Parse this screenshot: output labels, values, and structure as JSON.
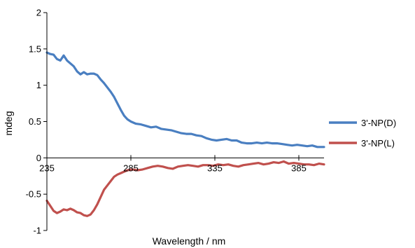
{
  "chart_data": {
    "type": "line",
    "title": "",
    "xlabel": "Wavelength / nm",
    "ylabel": "mdeg",
    "xlim": [
      235,
      400
    ],
    "ylim": [
      -1,
      2
    ],
    "x_ticks": [
      235,
      285,
      335,
      385
    ],
    "y_ticks": [
      2,
      1.5,
      1,
      0.5,
      0,
      -0.5,
      -1
    ],
    "x_tick_labels": [
      "235",
      "285",
      "335",
      "385"
    ],
    "y_tick_labels": [
      "2",
      "1.5",
      "1",
      "0.5",
      "0",
      "-0.5",
      "-1"
    ],
    "grid": false,
    "legend_position": "right",
    "series": [
      {
        "name": "3'-NP(D)",
        "color": "#4a7fc1",
        "points": [
          [
            235,
            1.45
          ],
          [
            237,
            1.43
          ],
          [
            239,
            1.42
          ],
          [
            241,
            1.36
          ],
          [
            243,
            1.34
          ],
          [
            245,
            1.41
          ],
          [
            247,
            1.34
          ],
          [
            249,
            1.3
          ],
          [
            251,
            1.26
          ],
          [
            253,
            1.19
          ],
          [
            255,
            1.15
          ],
          [
            257,
            1.18
          ],
          [
            259,
            1.15
          ],
          [
            261,
            1.16
          ],
          [
            263,
            1.16
          ],
          [
            265,
            1.14
          ],
          [
            267,
            1.08
          ],
          [
            269,
            1.03
          ],
          [
            271,
            0.97
          ],
          [
            273,
            0.91
          ],
          [
            275,
            0.84
          ],
          [
            277,
            0.75
          ],
          [
            279,
            0.66
          ],
          [
            281,
            0.58
          ],
          [
            283,
            0.53
          ],
          [
            285,
            0.5
          ],
          [
            288,
            0.47
          ],
          [
            291,
            0.46
          ],
          [
            294,
            0.44
          ],
          [
            297,
            0.42
          ],
          [
            300,
            0.43
          ],
          [
            303,
            0.4
          ],
          [
            306,
            0.39
          ],
          [
            309,
            0.38
          ],
          [
            312,
            0.36
          ],
          [
            315,
            0.34
          ],
          [
            318,
            0.33
          ],
          [
            321,
            0.33
          ],
          [
            324,
            0.31
          ],
          [
            327,
            0.3
          ],
          [
            330,
            0.27
          ],
          [
            333,
            0.25
          ],
          [
            336,
            0.24
          ],
          [
            339,
            0.25
          ],
          [
            342,
            0.26
          ],
          [
            345,
            0.24
          ],
          [
            348,
            0.24
          ],
          [
            351,
            0.21
          ],
          [
            354,
            0.2
          ],
          [
            357,
            0.2
          ],
          [
            360,
            0.21
          ],
          [
            363,
            0.2
          ],
          [
            366,
            0.21
          ],
          [
            369,
            0.2
          ],
          [
            372,
            0.2
          ],
          [
            375,
            0.19
          ],
          [
            378,
            0.18
          ],
          [
            381,
            0.17
          ],
          [
            384,
            0.18
          ],
          [
            387,
            0.17
          ],
          [
            390,
            0.16
          ],
          [
            393,
            0.17
          ],
          [
            396,
            0.15
          ],
          [
            400,
            0.15
          ]
        ]
      },
      {
        "name": "3'-NP(L)",
        "color": "#c0504d",
        "points": [
          [
            235,
            -0.59
          ],
          [
            237,
            -0.66
          ],
          [
            239,
            -0.73
          ],
          [
            241,
            -0.76
          ],
          [
            243,
            -0.74
          ],
          [
            245,
            -0.71
          ],
          [
            247,
            -0.72
          ],
          [
            249,
            -0.7
          ],
          [
            251,
            -0.72
          ],
          [
            253,
            -0.75
          ],
          [
            255,
            -0.76
          ],
          [
            257,
            -0.79
          ],
          [
            259,
            -0.8
          ],
          [
            261,
            -0.78
          ],
          [
            263,
            -0.72
          ],
          [
            265,
            -0.64
          ],
          [
            267,
            -0.54
          ],
          [
            269,
            -0.44
          ],
          [
            271,
            -0.38
          ],
          [
            273,
            -0.32
          ],
          [
            275,
            -0.26
          ],
          [
            277,
            -0.23
          ],
          [
            279,
            -0.21
          ],
          [
            281,
            -0.19
          ],
          [
            283,
            -0.17
          ],
          [
            286,
            -0.16
          ],
          [
            289,
            -0.17
          ],
          [
            292,
            -0.16
          ],
          [
            295,
            -0.14
          ],
          [
            298,
            -0.12
          ],
          [
            301,
            -0.11
          ],
          [
            304,
            -0.12
          ],
          [
            307,
            -0.14
          ],
          [
            310,
            -0.15
          ],
          [
            313,
            -0.12
          ],
          [
            316,
            -0.11
          ],
          [
            319,
            -0.1
          ],
          [
            322,
            -0.11
          ],
          [
            325,
            -0.12
          ],
          [
            328,
            -0.1
          ],
          [
            331,
            -0.1
          ],
          [
            334,
            -0.11
          ],
          [
            337,
            -0.09
          ],
          [
            340,
            -0.1
          ],
          [
            343,
            -0.09
          ],
          [
            346,
            -0.11
          ],
          [
            349,
            -0.12
          ],
          [
            352,
            -0.1
          ],
          [
            355,
            -0.09
          ],
          [
            358,
            -0.08
          ],
          [
            361,
            -0.07
          ],
          [
            364,
            -0.09
          ],
          [
            367,
            -0.08
          ],
          [
            370,
            -0.06
          ],
          [
            373,
            -0.07
          ],
          [
            376,
            -0.05
          ],
          [
            379,
            -0.08
          ],
          [
            382,
            -0.07
          ],
          [
            385,
            -0.08
          ],
          [
            388,
            -0.09
          ],
          [
            391,
            -0.09
          ],
          [
            394,
            -0.1
          ],
          [
            397,
            -0.08
          ],
          [
            400,
            -0.09
          ]
        ]
      }
    ]
  }
}
